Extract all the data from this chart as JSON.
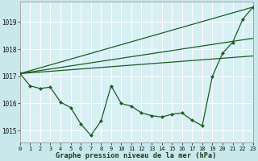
{
  "background_color": "#c8e8ec",
  "plot_bg_color": "#d8f0f4",
  "grid_color": "#ffffff",
  "line_color": "#1a5c20",
  "xlim": [
    0,
    23
  ],
  "ylim": [
    1014.55,
    1019.75
  ],
  "yticks": [
    1015,
    1016,
    1017,
    1018,
    1019
  ],
  "xticks": [
    0,
    1,
    2,
    3,
    4,
    5,
    6,
    7,
    8,
    9,
    10,
    11,
    12,
    13,
    14,
    15,
    16,
    17,
    18,
    19,
    20,
    21,
    22,
    23
  ],
  "xlabel": "Graphe pression niveau de la mer (hPa)",
  "main_line_x": [
    0,
    1,
    2,
    3,
    4,
    5,
    6,
    7,
    8,
    9,
    10,
    11,
    12,
    13,
    14,
    15,
    16,
    17,
    18,
    19,
    20,
    21,
    22,
    23
  ],
  "main_line_y": [
    1017.1,
    1016.65,
    1016.55,
    1016.6,
    1016.05,
    1015.85,
    1015.25,
    1014.82,
    1015.35,
    1016.65,
    1016.0,
    1015.9,
    1015.65,
    1015.55,
    1015.5,
    1015.6,
    1015.65,
    1015.38,
    1015.18,
    1017.0,
    1017.85,
    1018.25,
    1019.1,
    1019.55
  ],
  "trend_lines": [
    {
      "x": [
        0,
        23
      ],
      "y": [
        1017.1,
        1019.55
      ]
    },
    {
      "x": [
        0,
        23
      ],
      "y": [
        1017.1,
        1017.75
      ]
    },
    {
      "x": [
        0,
        23
      ],
      "y": [
        1017.1,
        1018.4
      ]
    }
  ],
  "linewidth": 0.9,
  "markersize": 2.2,
  "tick_fontsize": 5.0,
  "xlabel_fontsize": 6.2
}
